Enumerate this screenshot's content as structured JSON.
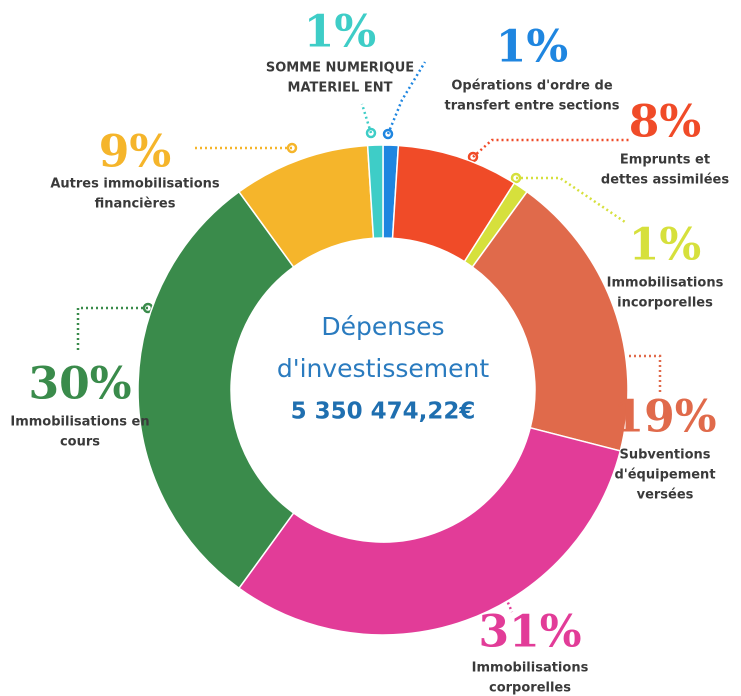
{
  "chart_data": {
    "type": "donut",
    "center_title": [
      "Dépenses",
      "d'investissement"
    ],
    "center_value": "5 350 474,22€",
    "categories": [
      [
        "Opérations d'ordre de",
        "transfert entre sections"
      ],
      [
        "Emprunts et",
        "dettes assimilées"
      ],
      [
        "Immobilisations",
        "incorporelles"
      ],
      [
        "Subventions",
        "d'équipement",
        "versées"
      ],
      [
        "Immobilisations",
        "corporelles"
      ],
      [
        "Immobilisations en",
        "cours"
      ],
      [
        "Autres immobilisations",
        "financières"
      ],
      [
        "SOMME NUMERIQUE",
        "MATERIEL ENT"
      ]
    ],
    "values": [
      1,
      8,
      1,
      19,
      31,
      30,
      9,
      1
    ],
    "value_labels": [
      "1%",
      "8%",
      "1%",
      "19%",
      "31%",
      "30%",
      "9%",
      "1%"
    ],
    "colors": [
      "#1f86e0",
      "#f04b28",
      "#d6e03c",
      "#e06a4b",
      "#e23c98",
      "#3a8b4b",
      "#f5b52b",
      "#3ecdc7"
    ]
  }
}
